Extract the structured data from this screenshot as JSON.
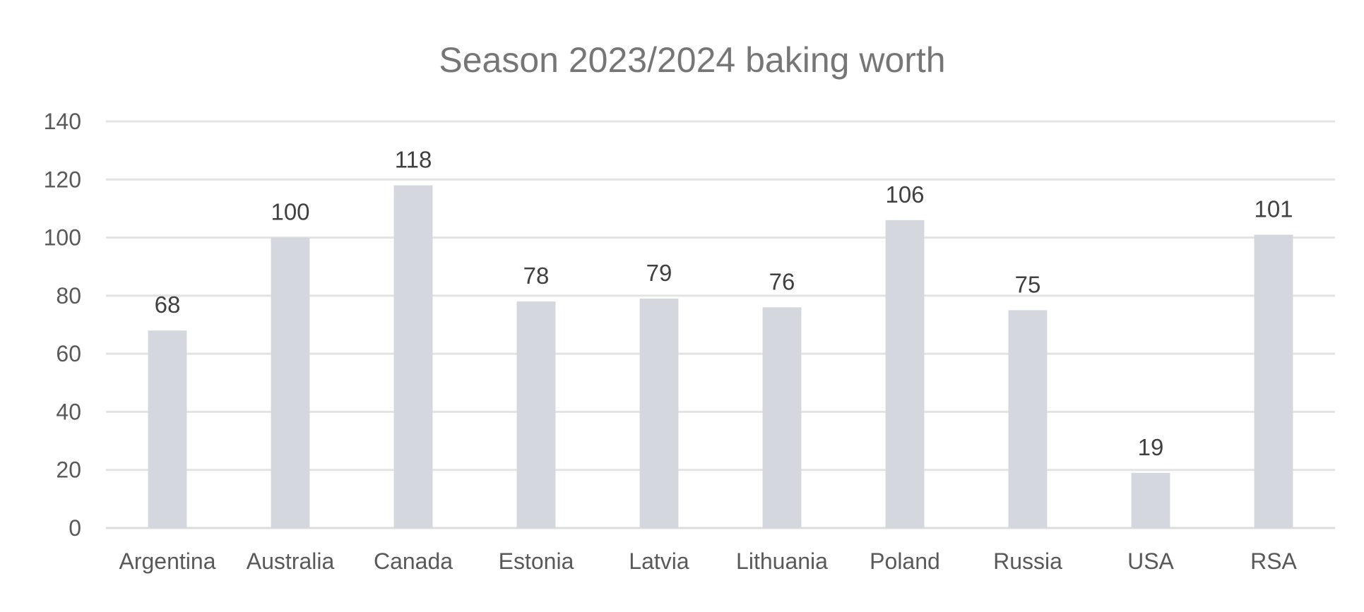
{
  "chart_data": {
    "type": "bar",
    "title": "Season 2023/2024  baking worth",
    "xlabel": "",
    "ylabel": "",
    "categories": [
      "Argentina",
      "Australia",
      "Canada",
      "Estonia",
      "Latvia",
      "Lithuania",
      "Poland",
      "Russia",
      "USA",
      "RSA"
    ],
    "values": [
      68,
      100,
      118,
      78,
      79,
      76,
      106,
      75,
      19,
      101
    ],
    "data_labels": [
      "68",
      "100",
      "118",
      "78",
      "79",
      "76",
      "106",
      "75",
      "19",
      "101"
    ],
    "ylim": [
      0,
      140
    ],
    "yticks": [
      "0",
      "20",
      "40",
      "60",
      "80",
      "100",
      "120",
      "140"
    ],
    "grid": true,
    "legend": "none",
    "bar_color": "#d4d8de"
  }
}
